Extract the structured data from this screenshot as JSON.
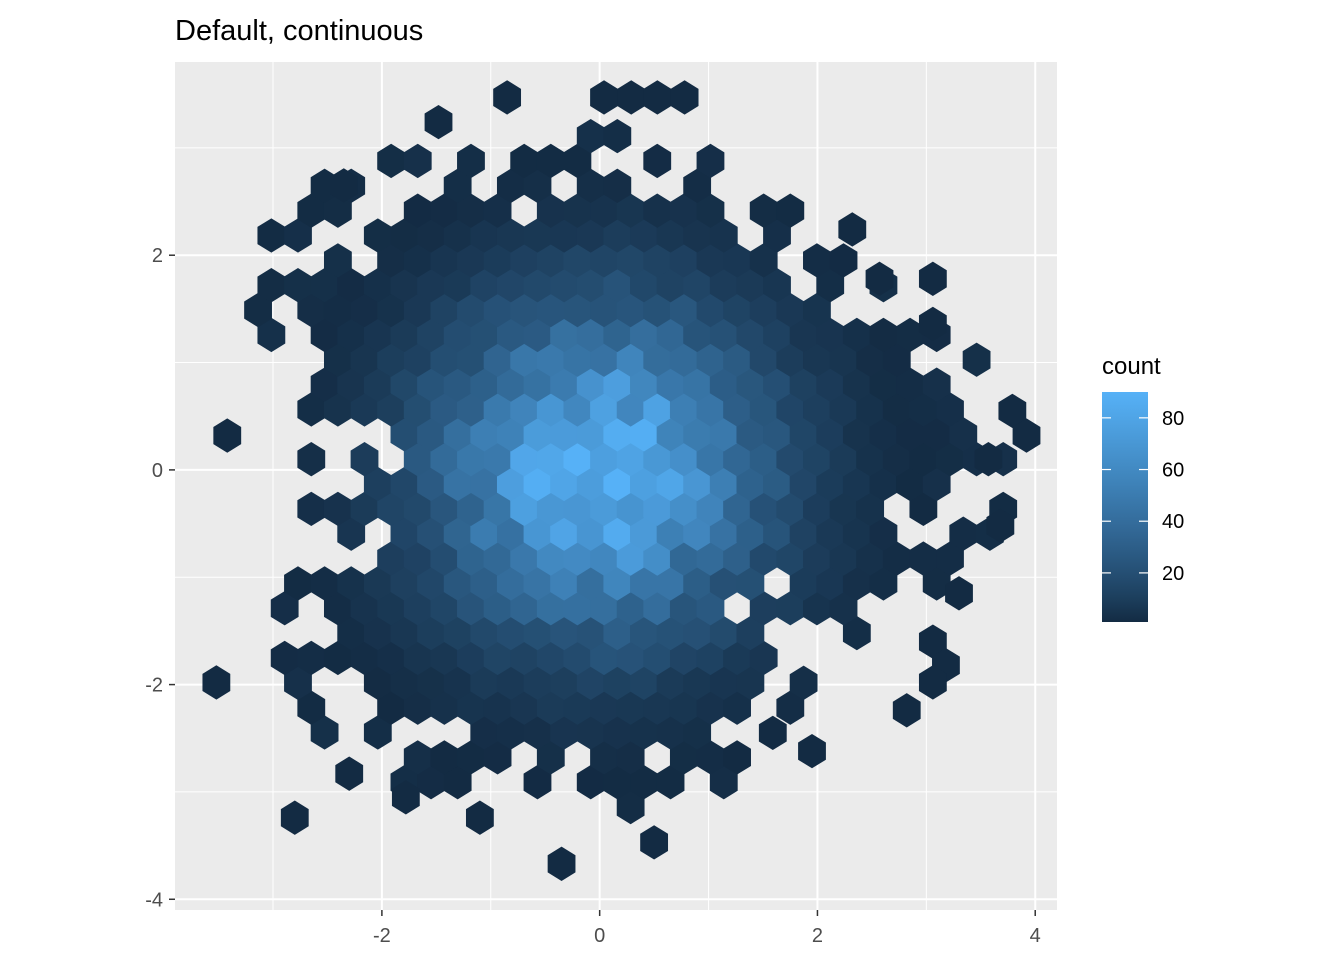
{
  "chart_data": {
    "type": "heatmap",
    "subtype": "hexbin",
    "title": "Default, continuous",
    "xlabel": "",
    "ylabel": "",
    "xlim": [
      -3.9,
      4.2
    ],
    "ylim": [
      -4.1,
      3.8
    ],
    "x_ticks": [
      -2,
      0,
      2,
      4
    ],
    "y_ticks": [
      -4,
      -2,
      0,
      2
    ],
    "x_tick_labels": [
      "-2",
      "0",
      "2",
      "4"
    ],
    "y_tick_labels": [
      "-4",
      "-2",
      "0",
      "2"
    ],
    "grid": true,
    "hex_spacing_x": 0.2444,
    "hex_spacing_y": 0.2315,
    "fill_scale": {
      "name": "count",
      "low_color": "#132B43",
      "high_color": "#56B1F7",
      "range": [
        1,
        90
      ],
      "breaks": [
        20,
        40,
        60,
        80
      ],
      "break_labels": [
        "20",
        "40",
        "60",
        "80"
      ]
    },
    "legend": {
      "title": "count",
      "position": "right"
    },
    "panel_background": "#EBEBEB",
    "grid_color": "#FFFFFF",
    "distribution_note": "",
    "isolated_cells": [
      [
        -1.48,
        3.24
      ],
      [
        -0.85,
        3.47
      ],
      [
        0.04,
        3.47
      ],
      [
        0.29,
        3.47
      ],
      [
        0.53,
        3.47
      ],
      [
        0.78,
        3.47
      ],
      [
        2.32,
        2.24
      ],
      [
        2.57,
        1.78
      ],
      [
        3.06,
        1.78
      ],
      [
        3.06,
        1.36
      ],
      [
        3.79,
        0.55
      ],
      [
        3.92,
        0.32
      ],
      [
        3.57,
        0.1
      ],
      [
        3.68,
        -0.52
      ],
      [
        3.3,
        -1.15
      ],
      [
        3.06,
        -1.6
      ],
      [
        3.18,
        -1.82
      ],
      [
        3.06,
        -1.98
      ],
      [
        1.95,
        -2.62
      ],
      [
        1.59,
        -2.45
      ],
      [
        2.82,
        -2.24
      ],
      [
        -3.52,
        -1.98
      ],
      [
        -2.8,
        -3.24
      ],
      [
        -1.78,
        -3.05
      ],
      [
        -1.1,
        -3.24
      ],
      [
        -0.35,
        -3.67
      ],
      [
        0.5,
        -3.47
      ],
      [
        -2.3,
        -2.83
      ],
      [
        -3.42,
        0.32
      ],
      [
        -2.35,
        2.65
      ]
    ]
  },
  "legend_label": "count"
}
